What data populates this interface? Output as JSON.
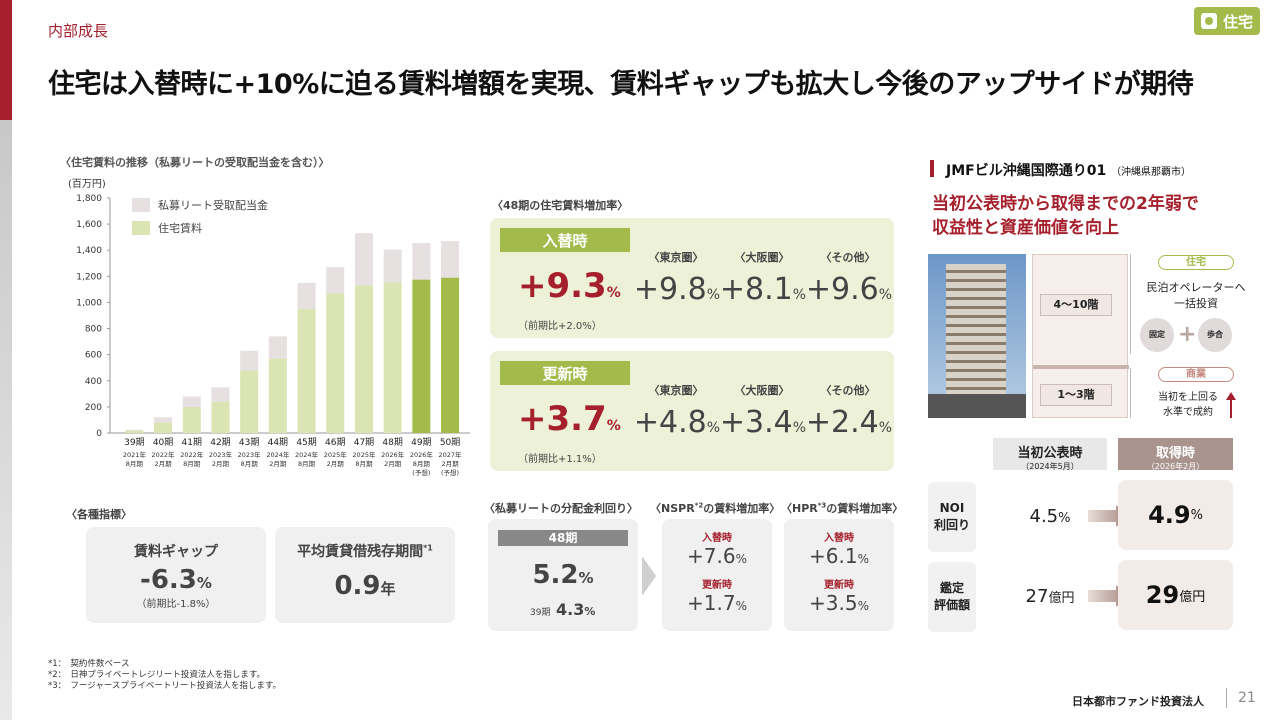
{
  "header": {
    "section": "内部成長",
    "tag": "住宅",
    "headline": "住宅は入替時に+10%に迫る賃料増額を実現、賃料ギャップも拡大し今後のアップサイドが期待"
  },
  "chart_data": {
    "type": "bar",
    "title": "〈住宅賃料の推移（私募リートの受取配当金を含む）〉",
    "ylabel": "(百万円)",
    "ylim": [
      0,
      1800
    ],
    "yticks": [
      "1,800",
      "1,600",
      "1,400",
      "1,200",
      "1,000",
      "800",
      "600",
      "400",
      "200",
      "0"
    ],
    "categories": [
      "39期",
      "40期",
      "41期",
      "42期",
      "43期",
      "44期",
      "45期",
      "46期",
      "47期",
      "48期",
      "49期",
      "50期"
    ],
    "dates": [
      "2021年\n8月期",
      "2022年\n2月期",
      "2022年\n8月期",
      "2023年\n2月期",
      "2023年\n8月期",
      "2024年\n2月期",
      "2024年\n8月期",
      "2025年\n2月期",
      "2025年\n8月期",
      "2026年\n2月期",
      "2026年\n8月期\n(予想)",
      "2027年\n2月期\n(予想)"
    ],
    "series": [
      {
        "name": "住宅賃料",
        "values": [
          20,
          80,
          200,
          240,
          480,
          570,
          950,
          1070,
          1130,
          1155,
          1175,
          1190
        ]
      },
      {
        "name": "私募リート受取配当金",
        "values": [
          5,
          40,
          80,
          110,
          150,
          170,
          200,
          200,
          400,
          250,
          280,
          280
        ]
      }
    ],
    "colors": {
      "residential": "#dbe4b3",
      "residential_forecast": "#a4ba4a",
      "dividend": "#e6e0e0"
    }
  },
  "legend": {
    "dividend": "私募リート受取配当金",
    "rent": "住宅賃料"
  },
  "increase": {
    "title": "〈48期の住宅賃料増加率〉",
    "replace": {
      "badge": "入替時",
      "value": "+9.3",
      "unit": "%",
      "prev": "（前期比+2.0%）",
      "areas": [
        {
          "label": "〈東京圏〉",
          "value": "+9.8"
        },
        {
          "label": "〈大阪圏〉",
          "value": "+8.1"
        },
        {
          "label": "〈その他〉",
          "value": "+9.6"
        }
      ]
    },
    "renew": {
      "badge": "更新時",
      "value": "+3.7",
      "unit": "%",
      "prev": "（前期比+1.1%）",
      "areas": [
        {
          "label": "〈東京圏〉",
          "value": "+4.8"
        },
        {
          "label": "〈大阪圏〉",
          "value": "+3.4"
        },
        {
          "label": "〈その他〉",
          "value": "+2.4"
        }
      ]
    }
  },
  "indicators": {
    "title": "〈各種指標〉",
    "gap": {
      "title": "賃料ギャップ",
      "value": "-6.3",
      "unit": "%",
      "sub": "（前期比-1.8%）"
    },
    "period": {
      "title": "平均賃貸借残存期間",
      "sup": "*1",
      "value": "0.9",
      "unit": "年"
    }
  },
  "private_reit": {
    "title": "〈私募リートの分配金利回り〉",
    "period": "48期",
    "value": "5.2",
    "unit": "%",
    "prev_label": "39期",
    "prev_value": "4.3",
    "prev_unit": "%"
  },
  "nspr": {
    "title": "〈NSPR",
    "sup": "*2",
    "title2": "の賃料増加率〉",
    "in_label": "入替時",
    "in_value": "+7.6",
    "re_label": "更新時",
    "re_value": "+1.7",
    "unit": "%"
  },
  "hpr": {
    "title": "〈HPR",
    "sup": "*3",
    "title2": "の賃料増加率〉",
    "in_label": "入替時",
    "in_value": "+6.1",
    "re_label": "更新時",
    "re_value": "+3.5",
    "unit": "%"
  },
  "footnotes": [
    "*1：　契約件数ベース",
    "*2：　日神プライベートレジリート投資法人を指します。",
    "*3：　フージャースプライベートリート投資法人を指します。"
  ],
  "property": {
    "name": "JMFビル沖縄国際通り01",
    "location": "（沖縄県那覇市）",
    "subtitle1": "当初公表時から取得までの2年弱で",
    "subtitle2": "収益性と資産価値を向上",
    "floors_upper": "4〜10階",
    "floors_lower": "1〜3階",
    "res_tag": "住宅",
    "res_text": "民泊オペレーターへ\n一括投資",
    "fixed": "固定",
    "ratio": "歩合",
    "com_tag": "商業",
    "com_text": "当初を上回る\n水準で成約",
    "col_initial": "当初公表時",
    "col_initial_date": "（2024年5月）",
    "col_acq": "取得時",
    "col_acq_date": "（2026年2月）",
    "noi_label": "NOI\n利回り",
    "noi_initial": "4.5",
    "noi_acq": "4.9",
    "pct": "%",
    "appr_label": "鑑定\n評価額",
    "appr_initial": "27",
    "appr_acq": "29",
    "oku": "億円"
  },
  "footer": {
    "company": "日本都市ファンド投資法人",
    "page": "21"
  }
}
